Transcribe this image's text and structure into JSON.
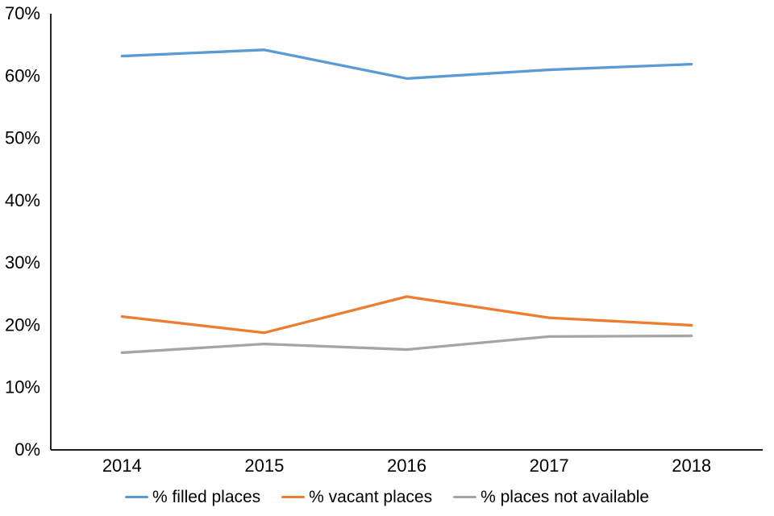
{
  "chart_data": {
    "type": "line",
    "title": "",
    "xlabel": "",
    "ylabel": "",
    "categories": [
      "2014",
      "2015",
      "2016",
      "2017",
      "2018"
    ],
    "series": [
      {
        "name": "% filled places",
        "color": "#5B9BD5",
        "values": [
          63.2,
          64.2,
          59.6,
          61.0,
          61.9
        ]
      },
      {
        "name": "% vacant places",
        "color": "#ED7D31",
        "values": [
          21.4,
          18.8,
          24.6,
          21.2,
          20.0
        ]
      },
      {
        "name": "% places not available",
        "color": "#A5A5A5",
        "values": [
          15.6,
          17.0,
          16.1,
          18.2,
          18.3
        ]
      }
    ],
    "ylim": [
      0,
      70
    ],
    "y_tick_step": 10,
    "y_tick_labels": [
      "0%",
      "10%",
      "20%",
      "30%",
      "40%",
      "50%",
      "60%",
      "70%"
    ],
    "grid": false,
    "legend_position": "bottom",
    "axis_color": "#000000",
    "text_color": "#000000",
    "background": "#FFFFFF"
  }
}
